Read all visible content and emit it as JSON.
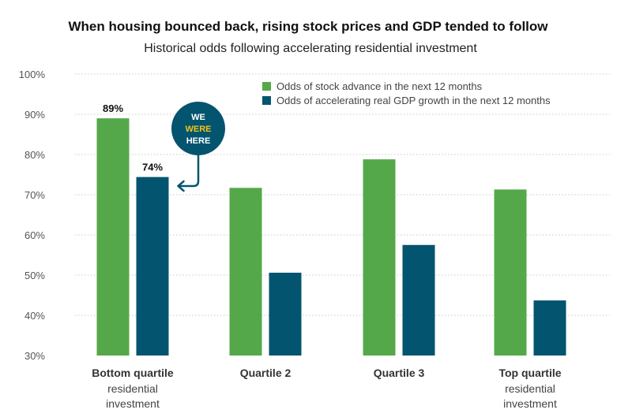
{
  "chart_data": {
    "type": "bar",
    "title": "When housing bounced back, rising stock prices and GDP tended to follow",
    "subtitle": "Historical odds following accelerating residential investment",
    "categories": [
      {
        "main": "Bottom quartile",
        "sub": [
          "residential",
          "investment"
        ]
      },
      {
        "main": "Quartile 2",
        "sub": []
      },
      {
        "main": "Quartile 3",
        "sub": []
      },
      {
        "main": "Top quartile",
        "sub": [
          "residential",
          "investment"
        ]
      }
    ],
    "series": [
      {
        "name": "Odds of stock advance in the next 12 months",
        "color": "#55a84a",
        "values": [
          89,
          71.7,
          78.8,
          71.3
        ]
      },
      {
        "name": "Odds of accelerating real GDP growth in the next 12 months",
        "color": "#03546e",
        "values": [
          74.4,
          50.6,
          57.5,
          43.7
        ]
      }
    ],
    "data_labels": [
      {
        "series": 0,
        "category": 0,
        "text": "89%"
      },
      {
        "series": 1,
        "category": 0,
        "text": "74%"
      }
    ],
    "ylim": [
      30,
      100
    ],
    "yticks": [
      "30%",
      "40%",
      "50%",
      "60%",
      "70%",
      "80%",
      "90%",
      "100%"
    ],
    "grid": true,
    "legend_position": "top-right",
    "annotation": {
      "lines": [
        "WE",
        "WERE",
        "HERE"
      ],
      "highlight_line": 1,
      "circle_color": "#03546e",
      "highlight_color": "#f2c318",
      "points_to": {
        "series": 1,
        "category": 0
      }
    }
  }
}
